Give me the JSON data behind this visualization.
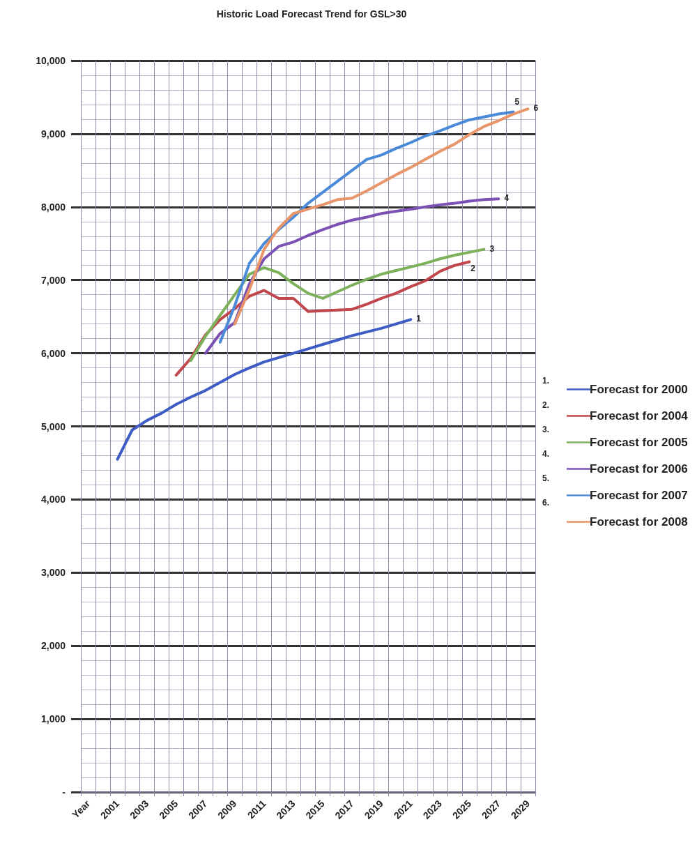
{
  "chart_data": {
    "type": "line",
    "title": "Historic Load Forecast Trend for GSL>30",
    "categories": [
      "Year",
      null,
      "2001",
      null,
      "2003",
      null,
      "2005",
      null,
      "2007",
      null,
      "2009",
      null,
      "2011",
      null,
      "2013",
      null,
      "2015",
      null,
      "2017",
      null,
      "2019",
      null,
      "2021",
      null,
      "2023",
      null,
      "2025",
      null,
      "2027",
      null,
      "2029"
    ],
    "series": [
      {
        "name": "Forecast for 2000",
        "color": "#3d5cc4",
        "values": [
          null,
          null,
          4550,
          4950,
          5080,
          5180,
          5300,
          5400,
          5490,
          5600,
          5710,
          5800,
          5880,
          5940,
          6000,
          6060,
          6120,
          6180,
          6240,
          6290,
          6340,
          6400,
          6460,
          null,
          null,
          null,
          null,
          null,
          null,
          null,
          null
        ]
      },
      {
        "name": "Forecast for 2004",
        "color": "#c0484d",
        "values": [
          null,
          null,
          null,
          null,
          null,
          null,
          5700,
          5930,
          6250,
          6460,
          6610,
          6780,
          6860,
          6750,
          6750,
          6570,
          6580,
          6590,
          6600,
          6670,
          6750,
          6820,
          6910,
          6990,
          7120,
          7200,
          7250,
          null,
          null,
          null,
          null
        ]
      },
      {
        "name": "Forecast for 2005",
        "color": "#7cb05a",
        "values": [
          null,
          null,
          null,
          null,
          null,
          null,
          null,
          5900,
          6230,
          6520,
          6800,
          7080,
          7170,
          7100,
          6950,
          6820,
          6750,
          6840,
          6930,
          7010,
          7080,
          7130,
          7180,
          7230,
          7290,
          7340,
          7380,
          7420,
          null,
          null,
          null
        ]
      },
      {
        "name": "Forecast for 2006",
        "color": "#7b52b3",
        "values": [
          null,
          null,
          null,
          null,
          null,
          null,
          null,
          null,
          6000,
          6270,
          6420,
          6950,
          7290,
          7460,
          7520,
          7610,
          7690,
          7760,
          7820,
          7860,
          7910,
          7940,
          7970,
          8000,
          8030,
          8050,
          8080,
          8100,
          8110,
          null,
          null
        ]
      },
      {
        "name": "Forecast for 2007",
        "color": "#4a8ad8",
        "values": [
          null,
          null,
          null,
          null,
          null,
          null,
          null,
          null,
          null,
          6150,
          6650,
          7230,
          7500,
          7690,
          7860,
          8050,
          8200,
          8350,
          8500,
          8650,
          8710,
          8800,
          8880,
          8970,
          9040,
          9120,
          9190,
          9230,
          9270,
          9300,
          null
        ]
      },
      {
        "name": "Forecast for 2008",
        "color": "#e8956a",
        "values": [
          null,
          null,
          null,
          null,
          null,
          null,
          null,
          null,
          null,
          null,
          6400,
          6870,
          7420,
          7710,
          7910,
          7970,
          8030,
          8100,
          8120,
          8220,
          8330,
          8440,
          8540,
          8650,
          8760,
          8860,
          8990,
          9100,
          9180,
          9270,
          9340
        ]
      }
    ],
    "ylim": [
      0,
      10000
    ],
    "yticks": [
      {
        "value": 0,
        "label": "-"
      },
      {
        "value": 1000,
        "label": "1,000"
      },
      {
        "value": 2000,
        "label": "2,000"
      },
      {
        "value": 3000,
        "label": "3,000"
      },
      {
        "value": 4000,
        "label": "4,000"
      },
      {
        "value": 5000,
        "label": "5,000"
      },
      {
        "value": 6000,
        "label": "6,000"
      },
      {
        "value": 7000,
        "label": "7,000"
      },
      {
        "value": 8000,
        "label": "8,000"
      },
      {
        "value": 9000,
        "label": "9,000"
      },
      {
        "value": 10000,
        "label": "10,000"
      }
    ],
    "annotations": [
      "1",
      "2",
      "3",
      "4",
      "5",
      "6",
      "1.",
      "2.",
      "3.",
      "4.",
      "5.",
      "6."
    ],
    "grid": true,
    "legend": "right",
    "marker": "none",
    "line_style": "solid"
  }
}
